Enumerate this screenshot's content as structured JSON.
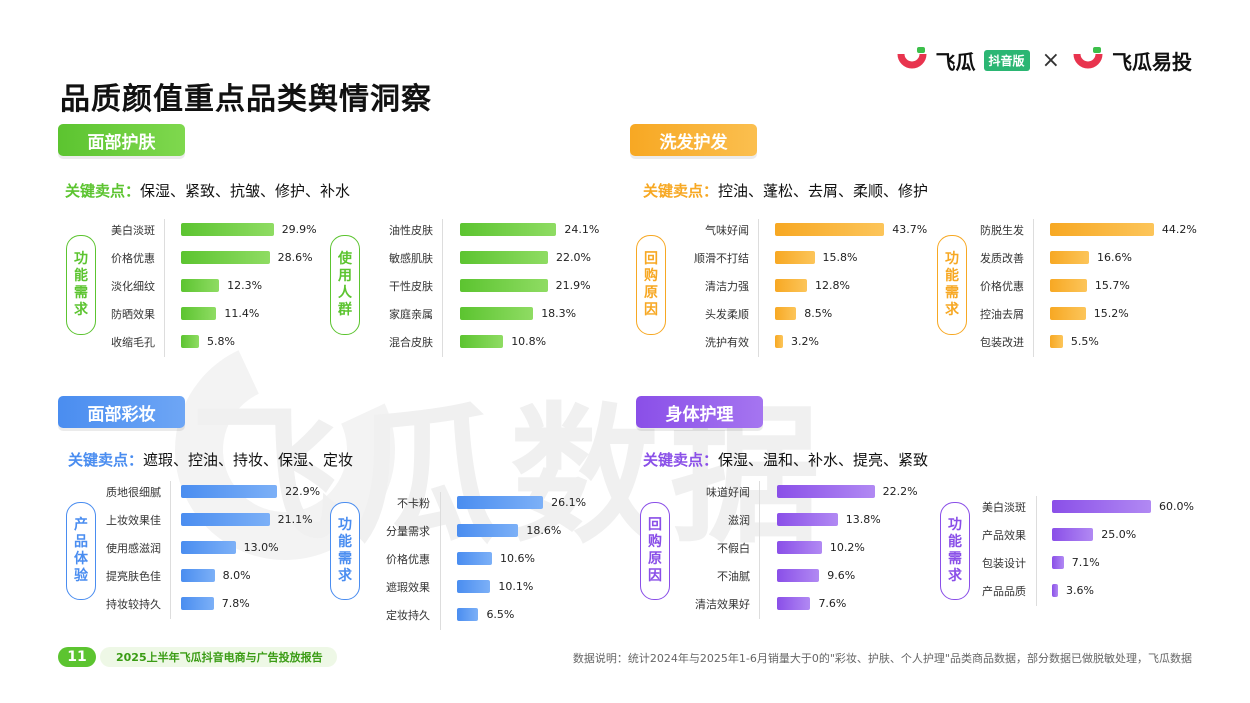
{
  "page": {
    "title": "品质颜值重点品类舆情洞察",
    "logo_left": "飞瓜",
    "logo_badge": "抖音版",
    "logo_cross": "×",
    "logo_right": "飞瓜易投",
    "watermark": "飞瓜数据",
    "page_number": "11",
    "report_title": "2025上半年飞瓜抖音电商与广告投放报告",
    "data_note": "数据说明：统计2024年与2025年1-6月销量大于0的\"彩妆、护肤、个人护理\"品类商品数据，部分数据已做脱敏处理，飞瓜数据"
  },
  "colors": {
    "green": "#5cc430",
    "orange": "#f7a823",
    "blue": "#4a8df0",
    "purple": "#8a4fe8"
  },
  "sections": [
    {
      "name": "面部护肤",
      "key_label": "关键卖点：",
      "key_points": "保湿、紧致、抗皱、修护、补水",
      "groups": [
        {
          "tag": "功能需求",
          "items": [
            {
              "label": "美白淡斑",
              "value": 29.9,
              "text": "29.9%"
            },
            {
              "label": "价格优惠",
              "value": 28.6,
              "text": "28.6%"
            },
            {
              "label": "淡化细纹",
              "value": 12.3,
              "text": "12.3%"
            },
            {
              "label": "防晒效果",
              "value": 11.4,
              "text": "11.4%"
            },
            {
              "label": "收缩毛孔",
              "value": 5.8,
              "text": "5.8%"
            }
          ]
        },
        {
          "tag": "使用人群",
          "items": [
            {
              "label": "油性皮肤",
              "value": 24.1,
              "text": "24.1%"
            },
            {
              "label": "敏感肌肤",
              "value": 22.0,
              "text": "22.0%"
            },
            {
              "label": "干性皮肤",
              "value": 21.9,
              "text": "21.9%"
            },
            {
              "label": "家庭亲属",
              "value": 18.3,
              "text": "18.3%"
            },
            {
              "label": "混合皮肤",
              "value": 10.8,
              "text": "10.8%"
            }
          ]
        }
      ]
    },
    {
      "name": "洗发护发",
      "key_label": "关键卖点：",
      "key_points": "控油、蓬松、去屑、柔顺、修护",
      "groups": [
        {
          "tag": "回购原因",
          "items": [
            {
              "label": "气味好闻",
              "value": 43.7,
              "text": "43.7%"
            },
            {
              "label": "顺滑不打结",
              "value": 15.8,
              "text": "15.8%"
            },
            {
              "label": "清洁力强",
              "value": 12.8,
              "text": "12.8%"
            },
            {
              "label": "头发柔顺",
              "value": 8.5,
              "text": "8.5%"
            },
            {
              "label": "洗护有效",
              "value": 3.2,
              "text": "3.2%"
            }
          ]
        },
        {
          "tag": "功能需求",
          "items": [
            {
              "label": "防脱生发",
              "value": 44.2,
              "text": "44.2%"
            },
            {
              "label": "发质改善",
              "value": 16.6,
              "text": "16.6%"
            },
            {
              "label": "价格优惠",
              "value": 15.7,
              "text": "15.7%"
            },
            {
              "label": "控油去屑",
              "value": 15.2,
              "text": "15.2%"
            },
            {
              "label": "包装改进",
              "value": 5.5,
              "text": "5.5%"
            }
          ]
        }
      ]
    },
    {
      "name": "面部彩妆",
      "key_label": "关键卖点：",
      "key_points": "遮瑕、控油、持妆、保湿、定妆",
      "groups": [
        {
          "tag": "产品体验",
          "items": [
            {
              "label": "质地很细腻",
              "value": 22.9,
              "text": "22.9%"
            },
            {
              "label": "上妆效果佳",
              "value": 21.1,
              "text": "21.1%"
            },
            {
              "label": "使用感滋润",
              "value": 13.0,
              "text": "13.0%"
            },
            {
              "label": "提亮肤色佳",
              "value": 8.0,
              "text": "8.0%"
            },
            {
              "label": "持妆较持久",
              "value": 7.8,
              "text": "7.8%"
            }
          ]
        },
        {
          "tag": "功能需求",
          "items": [
            {
              "label": "不卡粉",
              "value": 26.1,
              "text": "26.1%"
            },
            {
              "label": "分量需求",
              "value": 18.6,
              "text": "18.6%"
            },
            {
              "label": "价格优惠",
              "value": 10.6,
              "text": "10.6%"
            },
            {
              "label": "遮瑕效果",
              "value": 10.1,
              "text": "10.1%"
            },
            {
              "label": "定妆持久",
              "value": 6.5,
              "text": "6.5%"
            }
          ]
        }
      ]
    },
    {
      "name": "身体护理",
      "key_label": "关键卖点：",
      "key_points": "保湿、温和、补水、提亮、紧致",
      "groups": [
        {
          "tag": "回购原因",
          "items": [
            {
              "label": "味道好闻",
              "value": 22.2,
              "text": "22.2%"
            },
            {
              "label": "滋润",
              "value": 13.8,
              "text": "13.8%"
            },
            {
              "label": "不假白",
              "value": 10.2,
              "text": "10.2%"
            },
            {
              "label": "不油腻",
              "value": 9.6,
              "text": "9.6%"
            },
            {
              "label": "清洁效果好",
              "value": 7.6,
              "text": "7.6%"
            }
          ]
        },
        {
          "tag": "功能需求",
          "items": [
            {
              "label": "美白淡斑",
              "value": 60.0,
              "text": "60.0%"
            },
            {
              "label": "产品效果",
              "value": 25.0,
              "text": "25.0%"
            },
            {
              "label": "包装设计",
              "value": 7.1,
              "text": "7.1%"
            },
            {
              "label": "产品品质",
              "value": 3.6,
              "text": "3.6%"
            }
          ]
        }
      ]
    }
  ]
}
